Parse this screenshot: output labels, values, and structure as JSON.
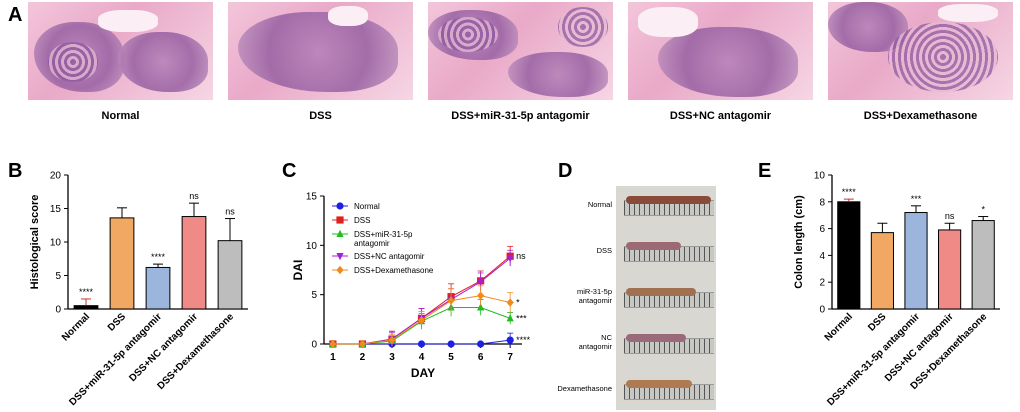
{
  "panels": {
    "a": "A",
    "b": "B",
    "c": "C",
    "d": "D",
    "e": "E"
  },
  "micrographs": [
    {
      "caption": "Normal"
    },
    {
      "caption": "DSS"
    },
    {
      "caption": "DSS+miR-31-5p antagomir"
    },
    {
      "caption": "DSS+NC antagomir"
    },
    {
      "caption": "DSS+Dexamethasone"
    }
  ],
  "photo": {
    "labels": [
      "Normal",
      "DSS",
      "miR-31-5p\nantagomir",
      "NC\nantagomir",
      "Dexamethasone"
    ],
    "colon_colors": [
      "#8a4a3a",
      "#9b6a72",
      "#a07050",
      "#9a6a7a",
      "#b07a50"
    ]
  },
  "chart_data": [
    {
      "type": "bar",
      "panel": "B",
      "ylabel": "Histological score",
      "ylim": [
        0,
        20
      ],
      "yticks": [
        0,
        5,
        10,
        15,
        20
      ],
      "categories": [
        "Normal",
        "DSS",
        "DSS+miR-31-5p antagomir",
        "DSS+NC antagomir",
        "DSS+Dexamethasone"
      ],
      "values": [
        0.5,
        13.6,
        6.2,
        13.8,
        10.2
      ],
      "errors": [
        1.0,
        1.5,
        0.5,
        2.0,
        3.3
      ],
      "colors": [
        "#000000",
        "#f0a862",
        "#9bb5dc",
        "#f08a86",
        "#bdbdbd"
      ],
      "annotations": [
        "****",
        "",
        "****",
        "ns",
        "ns"
      ]
    },
    {
      "type": "line",
      "panel": "C",
      "xlabel": "DAY",
      "ylabel": "DAI",
      "x": [
        1,
        2,
        3,
        4,
        5,
        6,
        7
      ],
      "ylim": [
        0,
        15
      ],
      "yticks": [
        0,
        5,
        10,
        15
      ],
      "legend": "top-left",
      "series": [
        {
          "name": "Normal",
          "color": "#1f1fe0",
          "marker": "circle",
          "values": [
            0,
            0,
            0,
            0,
            0,
            0,
            0.4
          ],
          "errors": [
            0,
            0,
            0,
            0,
            0,
            0,
            0.7
          ],
          "annotation": "****"
        },
        {
          "name": "DSS",
          "color": "#e01f1f",
          "marker": "square",
          "values": [
            0,
            0,
            0.5,
            2.6,
            4.8,
            6.4,
            8.9
          ],
          "errors": [
            0,
            0,
            0.8,
            1.0,
            1.3,
            1.0,
            1.0
          ],
          "annotation": "ns"
        },
        {
          "name": "DSS+miR-31-5p antagomir",
          "color": "#22bb22",
          "marker": "triangle",
          "values": [
            0,
            0,
            0.3,
            2.3,
            3.7,
            3.7,
            2.6
          ],
          "errors": [
            0,
            0,
            0.5,
            0.8,
            0.9,
            0.8,
            0.6
          ],
          "annotation": "***"
        },
        {
          "name": "DSS+NC antagomir",
          "color": "#a51fd8",
          "marker": "triangle-down",
          "values": [
            0,
            0,
            0.5,
            2.6,
            4.5,
            6.3,
            8.7
          ],
          "errors": [
            0,
            0,
            0.7,
            1.0,
            1.1,
            0.9,
            0.8
          ],
          "annotation": ""
        },
        {
          "name": "DSS+Dexamethasone",
          "color": "#f08a1f",
          "marker": "diamond",
          "values": [
            0,
            0,
            0.4,
            2.4,
            4.4,
            4.9,
            4.2
          ],
          "errors": [
            0,
            0,
            0.6,
            0.9,
            1.2,
            1.0,
            1.0
          ],
          "annotation": "*"
        }
      ]
    },
    {
      "type": "bar",
      "panel": "E",
      "ylabel": "Colon length (cm)",
      "ylim": [
        0,
        10
      ],
      "yticks": [
        0,
        2,
        4,
        6,
        8,
        10
      ],
      "categories": [
        "Normal",
        "DSS",
        "DSS+miR-31-5p antagomir",
        "DSS+NC antagomir",
        "DSS+Dexamethasone"
      ],
      "values": [
        8.0,
        5.7,
        7.2,
        5.9,
        6.6
      ],
      "errors": [
        0.2,
        0.7,
        0.5,
        0.5,
        0.3
      ],
      "colors": [
        "#000000",
        "#f0a862",
        "#9bb5dc",
        "#f08a86",
        "#bdbdbd"
      ],
      "annotations": [
        "****",
        "",
        "***",
        "ns",
        "*"
      ]
    }
  ]
}
